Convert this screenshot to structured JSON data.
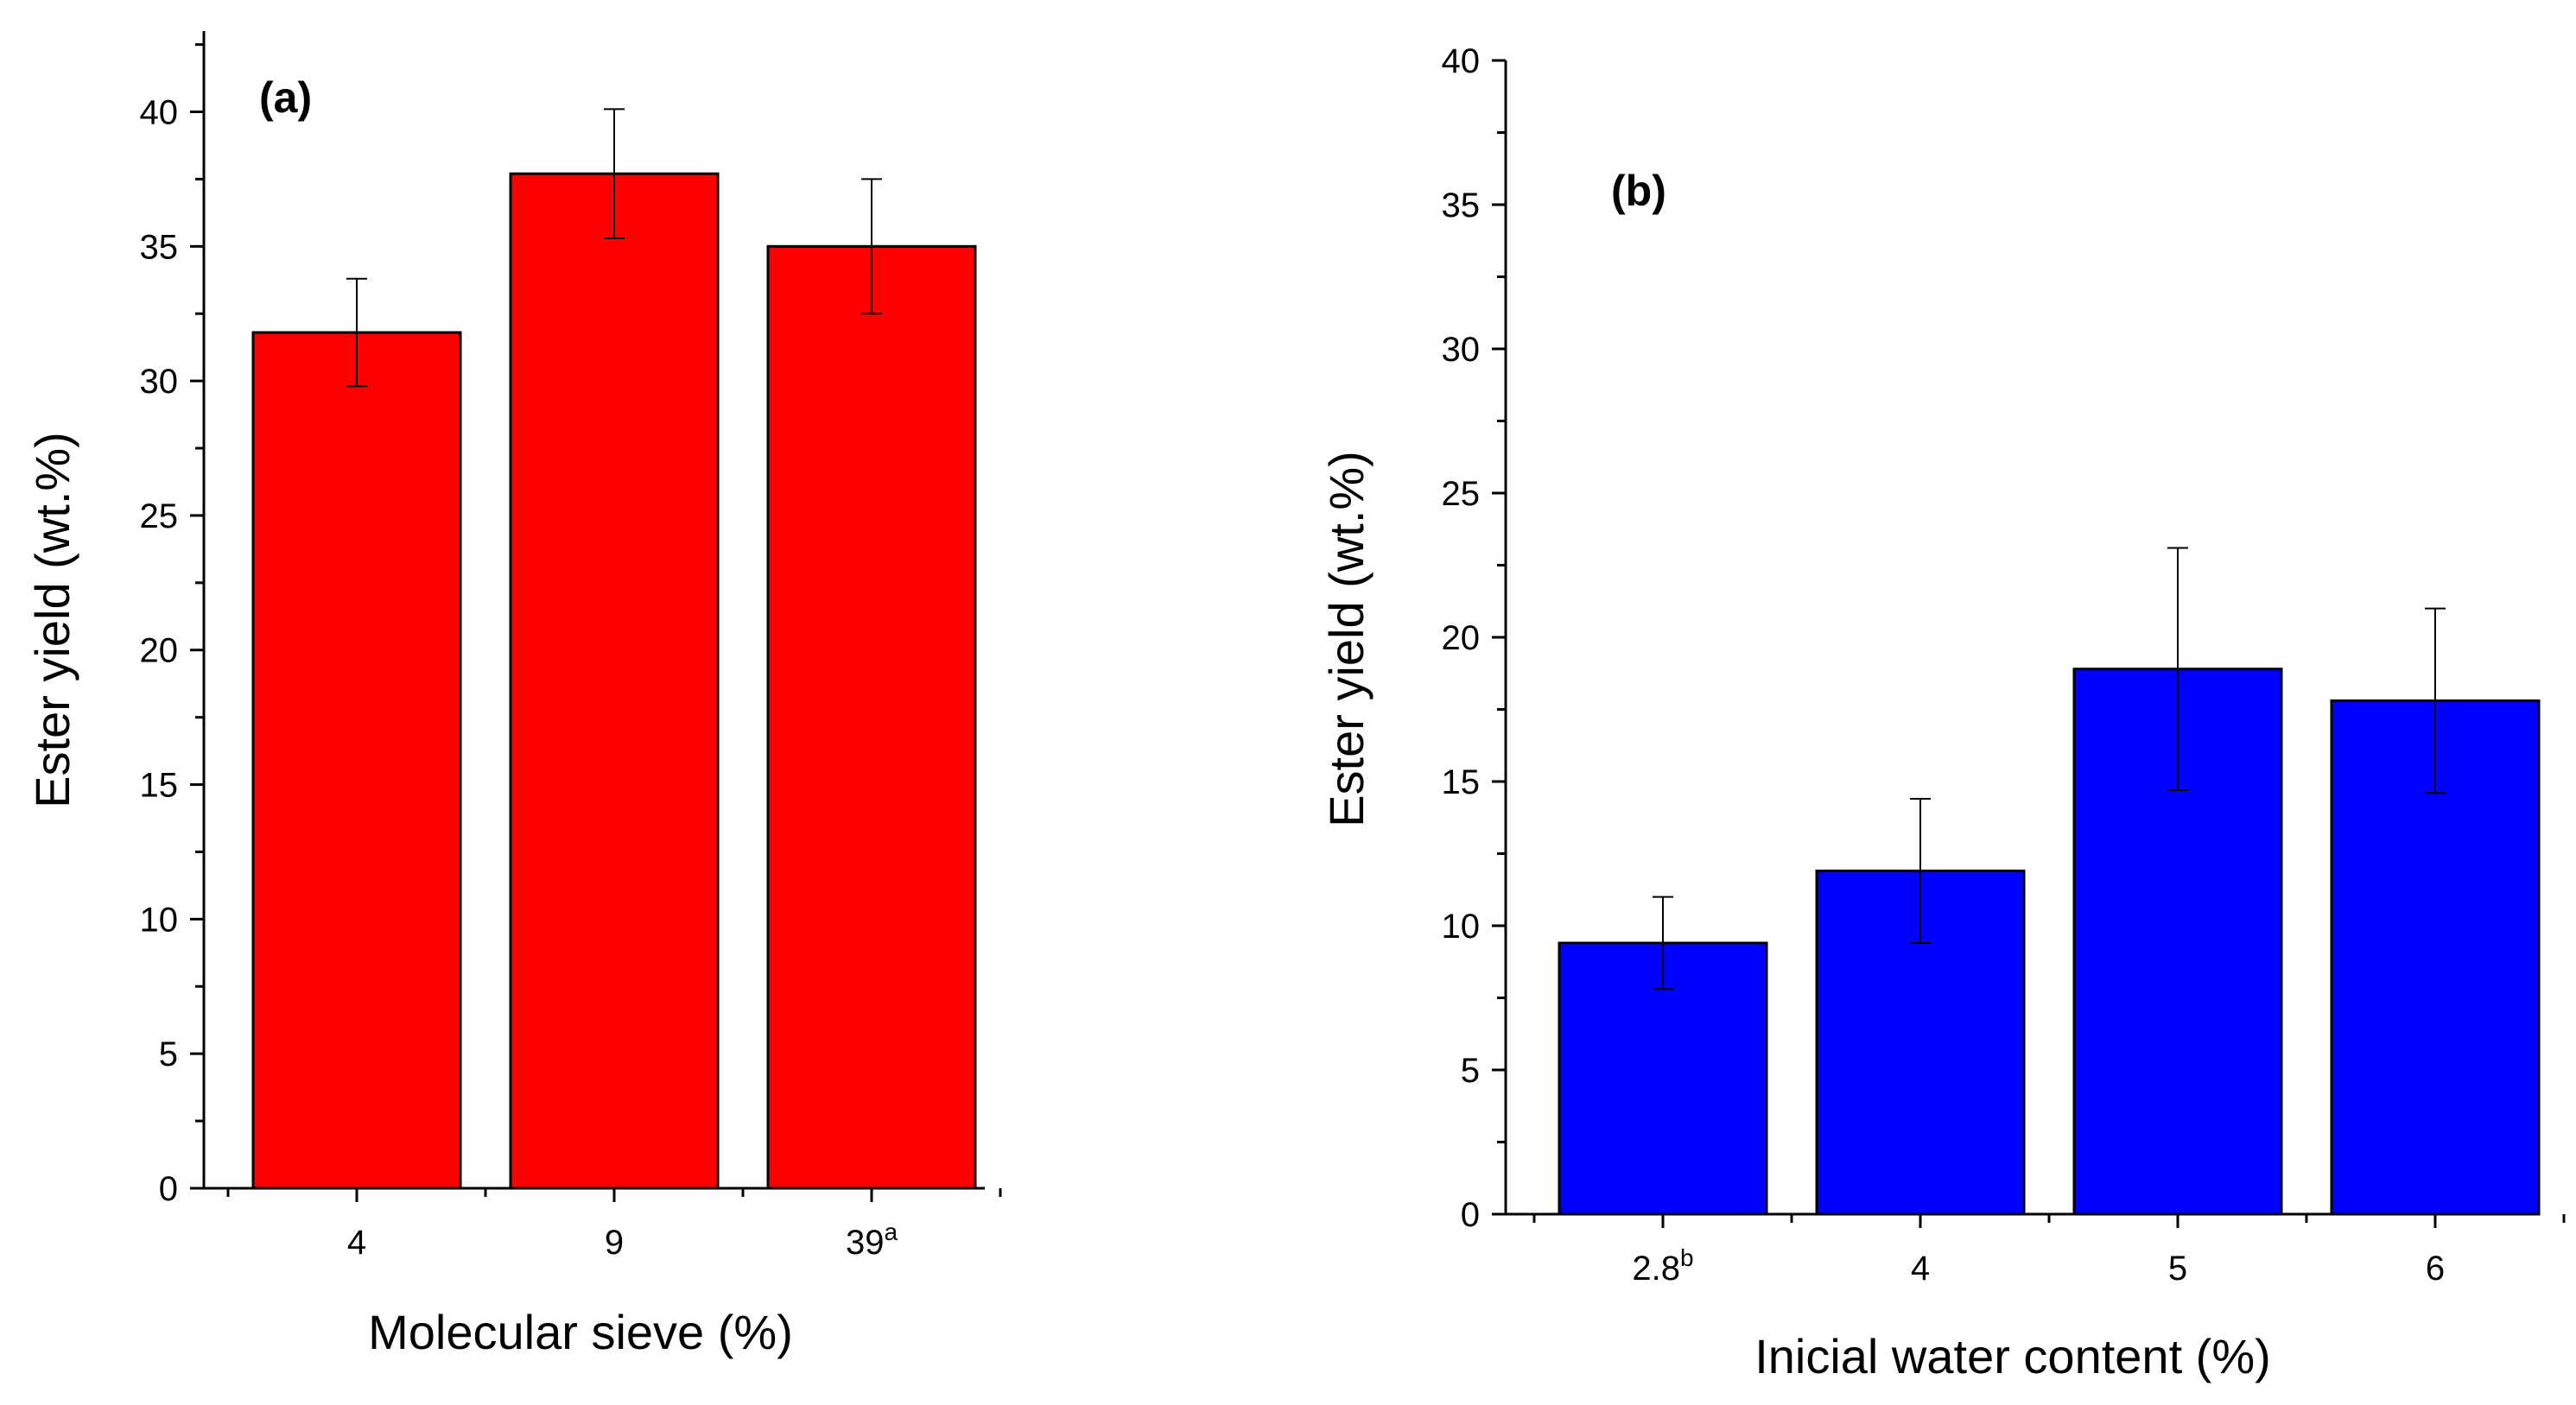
{
  "chart_data": [
    {
      "panel": "(a)",
      "type": "bar",
      "categories": [
        "4",
        "9",
        "39"
      ],
      "category_superscripts": [
        "",
        "",
        "a"
      ],
      "values": [
        31.8,
        37.7,
        35.0
      ],
      "errors": [
        2.0,
        2.4,
        2.5
      ],
      "xlabel": "Molecular sieve (%)",
      "ylabel": "Ester yield (wt.%)",
      "ylim": [
        0,
        43
      ],
      "yticks": [
        0,
        5,
        10,
        15,
        20,
        25,
        30,
        35,
        40
      ],
      "bar_color": "#ff0000"
    },
    {
      "panel": "(b)",
      "type": "bar",
      "categories": [
        "2.8",
        "4",
        "5",
        "6"
      ],
      "category_superscripts": [
        "b",
        "",
        "",
        ""
      ],
      "values": [
        9.4,
        11.9,
        18.9,
        17.8
      ],
      "errors": [
        1.6,
        2.5,
        4.2,
        3.2
      ],
      "xlabel": "Inicial water content (%)",
      "ylabel": "Ester yield (wt.%)",
      "ylim": [
        0,
        40
      ],
      "yticks": [
        0,
        5,
        10,
        15,
        20,
        25,
        30,
        35,
        40
      ],
      "bar_color": "#0000ff"
    }
  ]
}
